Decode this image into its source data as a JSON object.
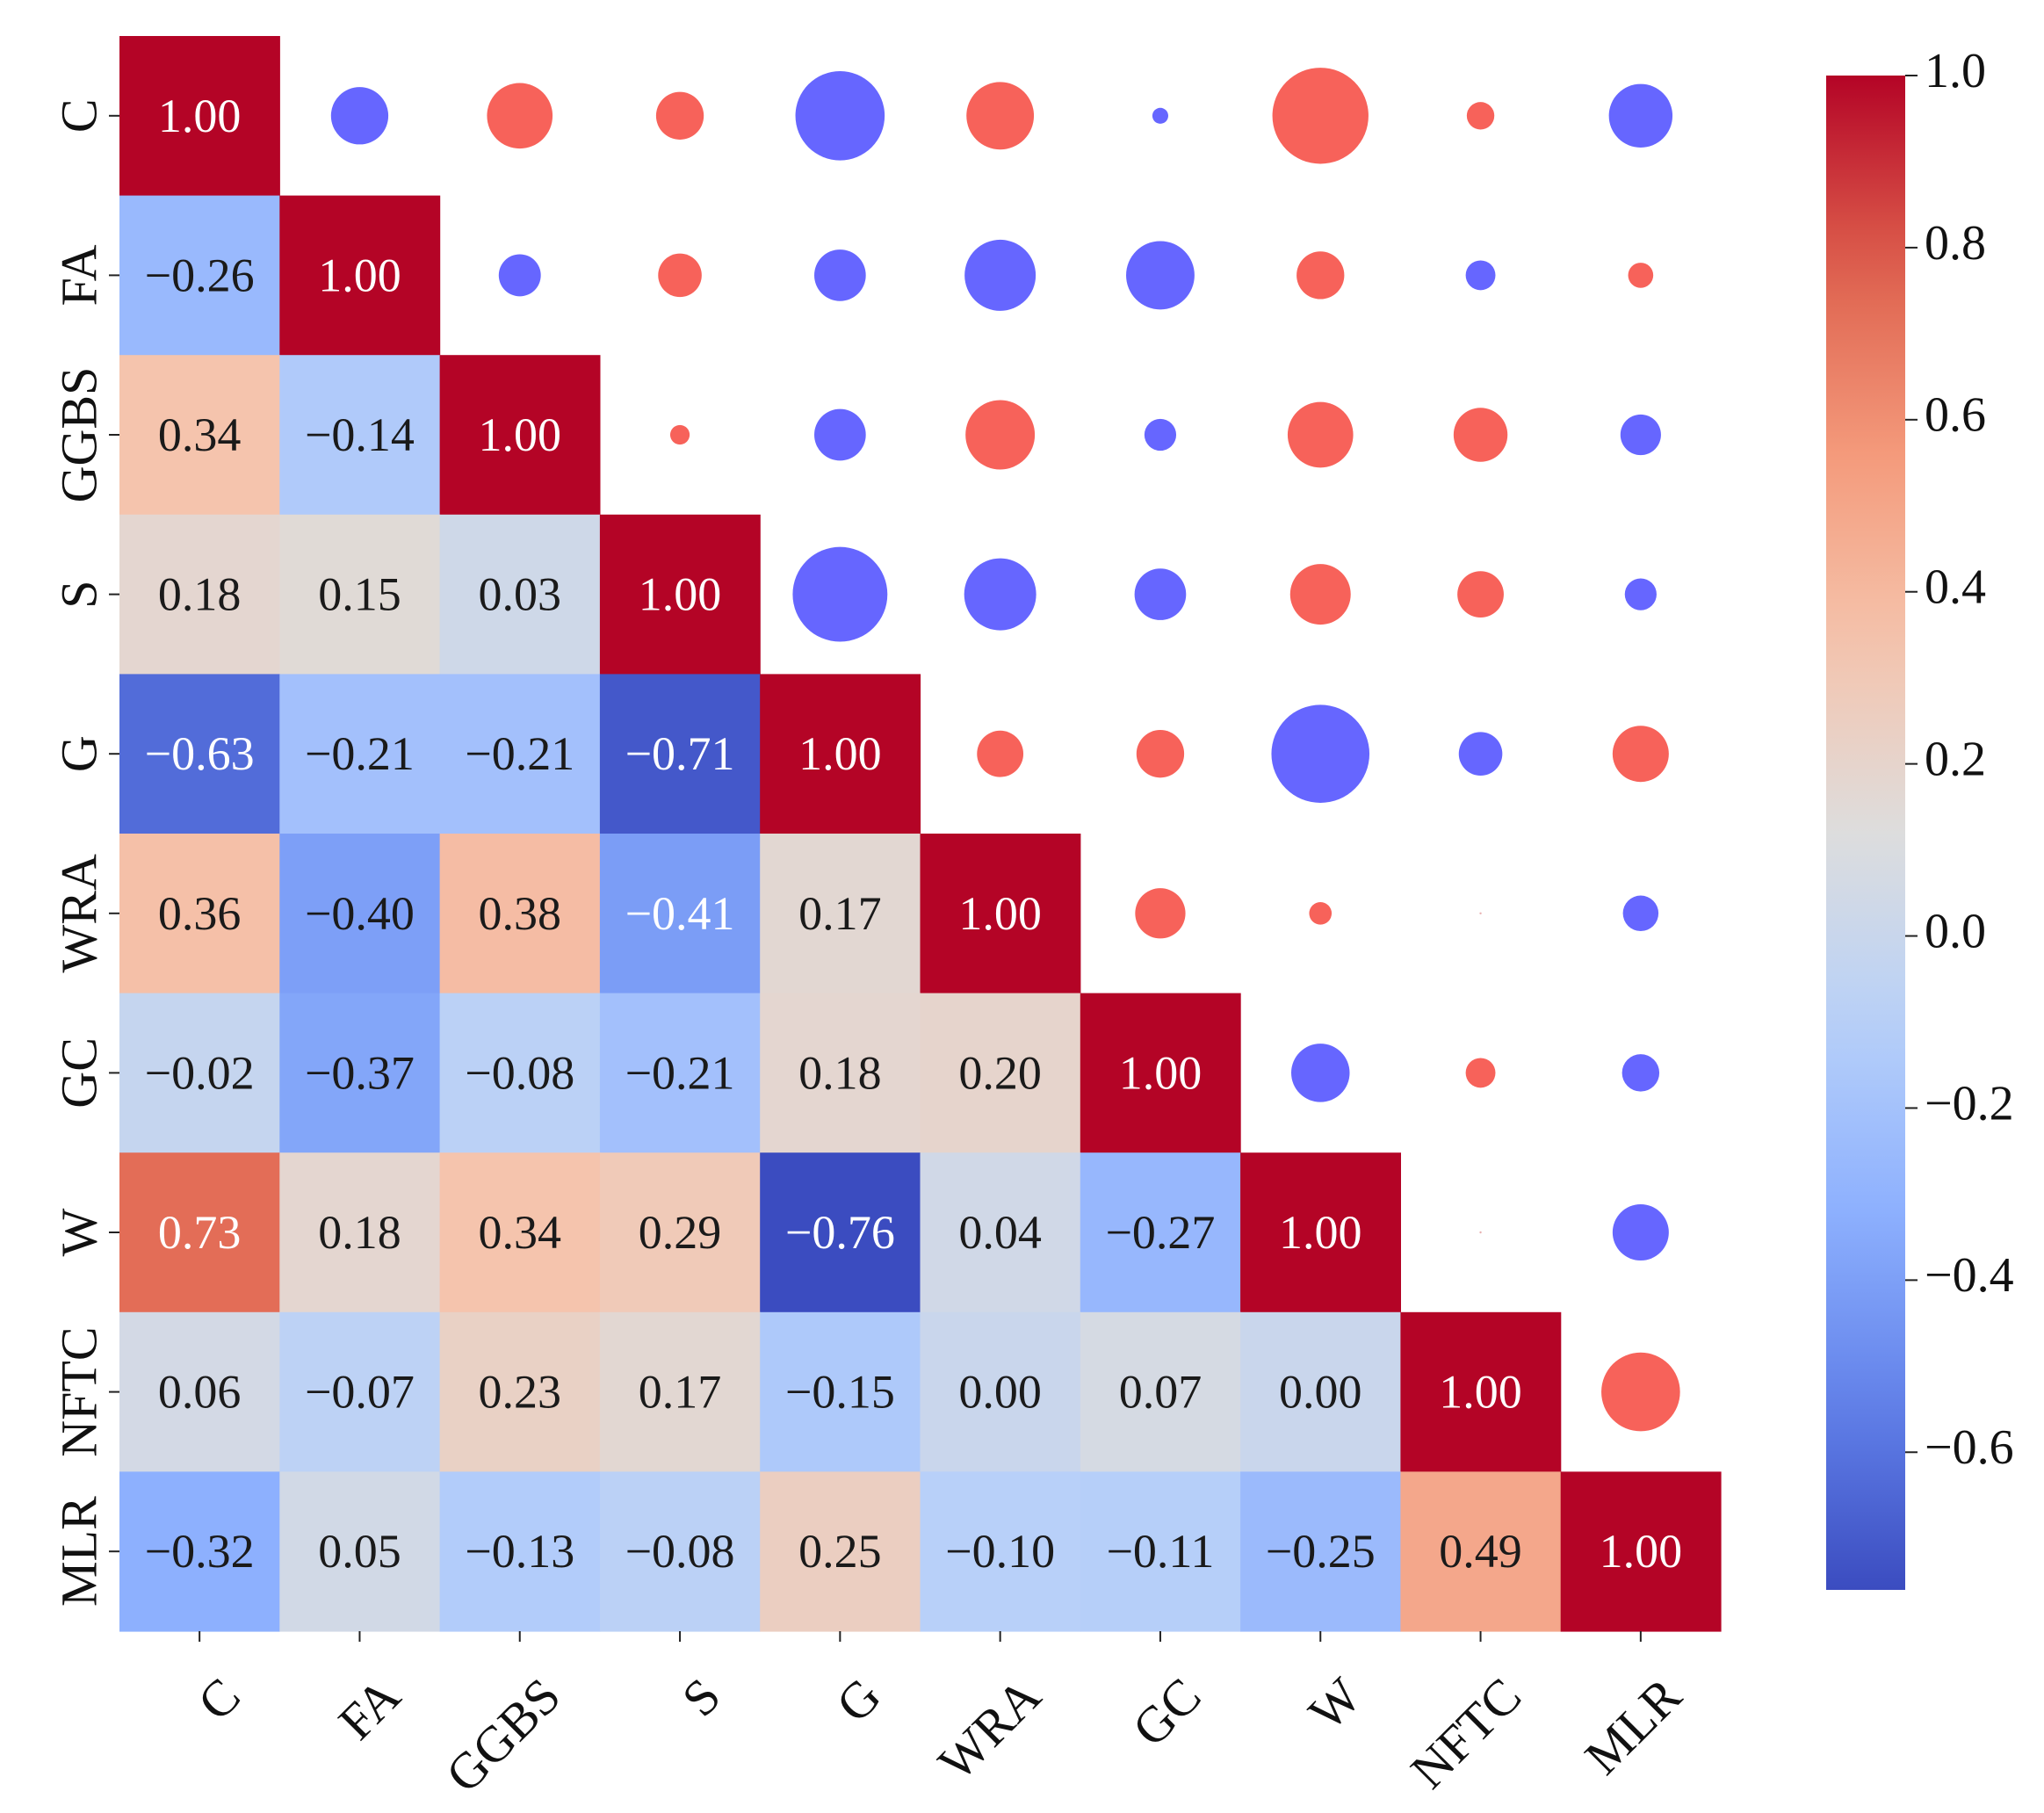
{
  "chart_data": {
    "type": "heatmap",
    "title": "",
    "subtitle": "",
    "variables": [
      "C",
      "FA",
      "GGBS",
      "S",
      "G",
      "WRA",
      "GC",
      "W",
      "NFTC",
      "MLR"
    ],
    "lower_triangle": "annotated colored cells",
    "upper_triangle": "circles sized by |r|, red = positive, blue = negative",
    "matrix": [
      [
        1.0,
        -0.26,
        0.34,
        0.18,
        -0.63,
        0.36,
        -0.02,
        0.73,
        0.06,
        -0.32
      ],
      [
        -0.26,
        1.0,
        -0.14,
        0.15,
        -0.21,
        -0.4,
        -0.37,
        0.18,
        -0.07,
        0.05
      ],
      [
        0.34,
        -0.14,
        1.0,
        0.03,
        -0.21,
        0.38,
        -0.08,
        0.34,
        0.23,
        -0.13
      ],
      [
        0.18,
        0.15,
        0.03,
        1.0,
        -0.71,
        -0.41,
        -0.21,
        0.29,
        0.17,
        -0.08
      ],
      [
        -0.63,
        -0.21,
        -0.21,
        -0.71,
        1.0,
        0.17,
        0.18,
        -0.76,
        -0.15,
        0.25
      ],
      [
        0.36,
        -0.4,
        0.38,
        -0.41,
        0.17,
        1.0,
        0.2,
        0.04,
        0.0,
        -0.1
      ],
      [
        -0.02,
        -0.37,
        -0.08,
        -0.21,
        0.18,
        0.2,
        1.0,
        -0.27,
        0.07,
        -0.11
      ],
      [
        0.73,
        0.18,
        0.34,
        0.29,
        -0.76,
        0.04,
        -0.27,
        1.0,
        0.0,
        -0.25
      ],
      [
        0.06,
        -0.07,
        0.23,
        0.17,
        -0.15,
        0.0,
        0.07,
        0.0,
        1.0,
        0.49
      ],
      [
        -0.32,
        0.05,
        -0.13,
        -0.08,
        0.25,
        -0.1,
        -0.11,
        -0.25,
        0.49,
        1.0
      ]
    ],
    "colorbar": {
      "colormap": "coolwarm",
      "vmin": -0.76,
      "vmax": 1.0,
      "ticks": [
        1.0,
        0.8,
        0.6,
        0.4,
        0.2,
        0.0,
        -0.2,
        -0.4,
        -0.6
      ],
      "tick_labels": [
        "1.0",
        "0.8",
        "0.6",
        "0.4",
        "0.2",
        "0.0",
        "−0.2",
        "−0.4",
        "−0.6"
      ]
    },
    "colors": {
      "positive_circle": "#F7625A",
      "negative_circle": "#6666FF",
      "light_text": "#ffffff",
      "dark_text": "#1a1a1a"
    }
  }
}
